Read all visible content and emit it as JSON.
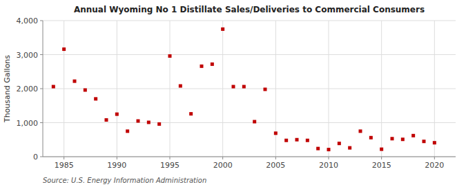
{
  "chart_data": {
    "type": "scatter",
    "title": "Annual Wyoming No 1 Distillate Sales/Deliveries to Commercial Consumers",
    "y_label": "Thousand Gallons",
    "source": "Source: U.S. Energy Information Administration",
    "x": [
      1984,
      1985,
      1986,
      1987,
      1988,
      1989,
      1990,
      1991,
      1992,
      1993,
      1994,
      1995,
      1996,
      1997,
      1998,
      1999,
      2000,
      2001,
      2002,
      2003,
      2004,
      2005,
      2006,
      2007,
      2008,
      2009,
      2010,
      2011,
      2012,
      2013,
      2014,
      2015,
      2016,
      2017,
      2018,
      2019,
      2020
    ],
    "values": [
      2060,
      3160,
      2220,
      1960,
      1700,
      1080,
      1250,
      750,
      1050,
      1010,
      960,
      2960,
      2080,
      1260,
      2660,
      2720,
      3750,
      2060,
      2060,
      1030,
      1980,
      690,
      480,
      500,
      480,
      240,
      210,
      390,
      260,
      750,
      560,
      220,
      530,
      510,
      620,
      450,
      410
    ],
    "color": "#c00000",
    "marker": "square",
    "xlim": [
      1983,
      2022
    ],
    "ylim": [
      0,
      4000
    ],
    "xticks": [
      1985,
      1990,
      1995,
      2000,
      2005,
      2010,
      2015,
      2020
    ],
    "yticks": [
      0,
      {
        "value": 1000,
        "label": "1,000"
      },
      {
        "value": 2000,
        "label": "2,000"
      },
      {
        "value": 3000,
        "label": "3,000"
      },
      {
        "value": 4000,
        "label": "4,000"
      }
    ],
    "grid": true
  }
}
